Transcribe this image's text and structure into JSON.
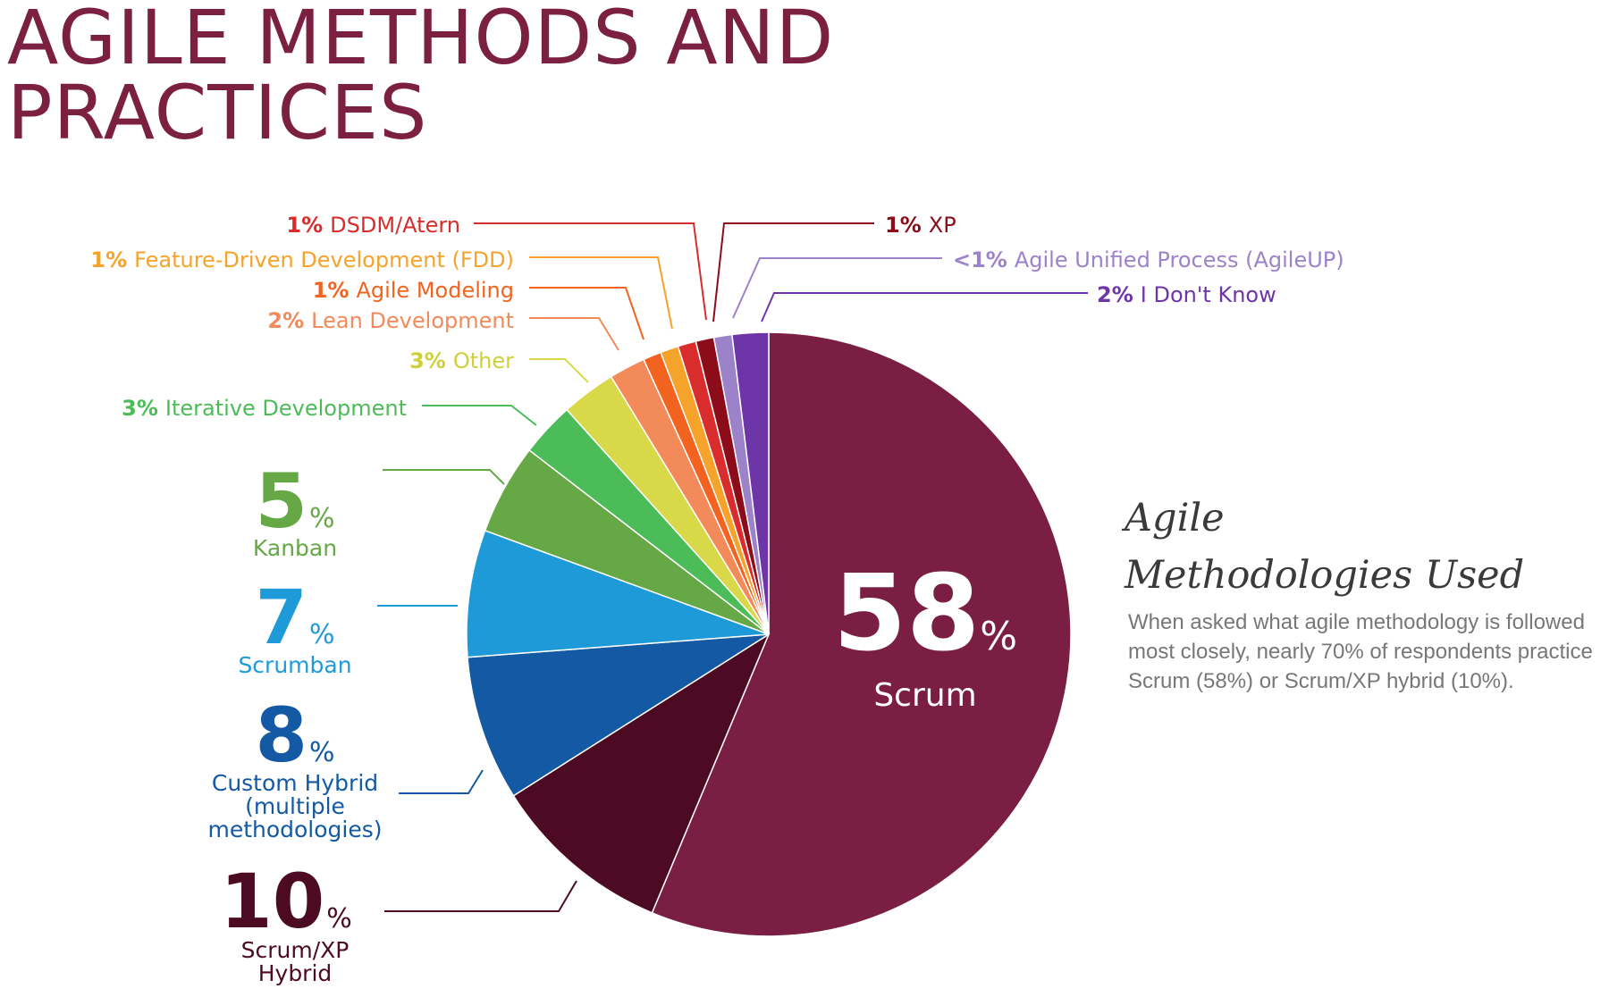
{
  "title": {
    "line1": "AGILE METHODS AND",
    "line2": "PRACTICES"
  },
  "side_panel": {
    "heading_line1": "Agile",
    "heading_line2": "Methodologies Used",
    "description": "When asked what agile methodology is followed most closely, nearly 70% of respondents practice Scrum (58%) or Scrum/XP hybrid (10%)."
  },
  "chart_data": {
    "type": "pie",
    "title": "Agile Methodologies Used",
    "slices": [
      {
        "pct_text": "58",
        "label_line1": "Scrum",
        "value": 58,
        "color": "#7a1f43"
      },
      {
        "pct_text": "10",
        "label_line1": "Scrum/XP",
        "label_line2": "Hybrid",
        "value": 10,
        "color": "#4d0b23"
      },
      {
        "pct_text": "8",
        "label_line1": "Custom Hybrid",
        "label_line2": "(multiple",
        "label_line3": "methodologies)",
        "value": 8,
        "color": "#1459a3"
      },
      {
        "pct_text": "7",
        "label_line1": "Scrumban",
        "value": 7,
        "color": "#1e9ad9"
      },
      {
        "pct_text": "5",
        "label_line1": "Kanban",
        "value": 5,
        "color": "#66a846"
      },
      {
        "pct_text": "3%",
        "label_line1": "Iterative Development",
        "value": 3,
        "color": "#4cbc58"
      },
      {
        "pct_text": "3%",
        "label_line1": "Other",
        "value": 3,
        "color": "#d8d848"
      },
      {
        "pct_text": "2%",
        "label_line1": "Lean Development",
        "value": 2,
        "color": "#f28a5a"
      },
      {
        "pct_text": "1%",
        "label_line1": "Agile Modeling",
        "value": 1,
        "color": "#f2631f"
      },
      {
        "pct_text": "1%",
        "label_line1": "Feature-Driven Development (FDD)",
        "value": 1,
        "color": "#f5a32a"
      },
      {
        "pct_text": "1%",
        "label_line1": "DSDM/Atern",
        "value": 1,
        "color": "#d92c2c"
      },
      {
        "pct_text": "1%",
        "label_line1": "XP",
        "value": 1,
        "color": "#8c0c1a"
      },
      {
        "pct_text": "<1%",
        "label_line1": "Agile Unified Process (AgileUP)",
        "value": 1,
        "color": "#9c82c9"
      },
      {
        "pct_text": "2%",
        "label_line1": "I Don't Know",
        "value": 2,
        "color": "#6e35a8"
      }
    ],
    "legend": "none"
  }
}
